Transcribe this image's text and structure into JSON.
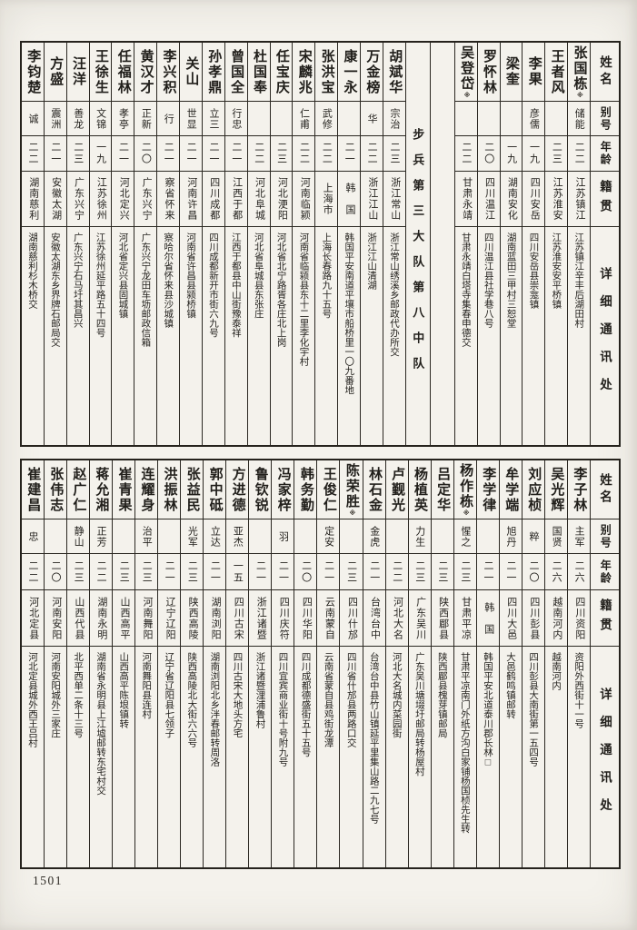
{
  "page_number": "1501",
  "unit_label": "步兵第三大队第八中队",
  "headers": {
    "name": "姓名",
    "alias": "别号",
    "age": "年龄",
    "origin": "籍贯",
    "address": "详细通讯处"
  },
  "top_people": [
    {
      "name": "张国栋",
      "note": "※",
      "alias": "储能",
      "age": "二二",
      "origin": "江苏镇江",
      "address": "江苏镇江辛丰后湖田村"
    },
    {
      "name": "王者风",
      "alias": "",
      "age": "二三",
      "origin": "江苏淮安",
      "address": "江苏淮安安平桥镇"
    },
    {
      "name": "李果",
      "alias": "彦儒",
      "age": "一九",
      "origin": "四川安岳",
      "address": "四川安岳县崇龛镇"
    },
    {
      "name": "梁奎",
      "alias": "",
      "age": "一九",
      "origin": "湖南安化",
      "address": "湖南蓝田三甲村三恕堂"
    },
    {
      "name": "罗怀林",
      "alias": "",
      "age": "二〇",
      "origin": "四川温江",
      "address": "四川温江县社学巷八号"
    },
    {
      "name": "吴登岱",
      "note": "※",
      "alias": "",
      "age": "二二",
      "origin": "甘肃永靖",
      "address": "甘肃永靖白塔寺集春申德交"
    },
    {
      "name": "胡斌华",
      "alias": "宗治",
      "age": "二三",
      "origin": "浙江常山",
      "address": "浙江常山绣溪乡邮政代办所交"
    },
    {
      "name": "万金榜",
      "alias": "华",
      "age": "二二",
      "origin": "浙江江山",
      "address": "浙江江山清湖"
    },
    {
      "name": "康一永",
      "alias": "",
      "age": "二一",
      "origin": "韩　国",
      "address": "韩国平安南道平壤市船桥里一〇九番地"
    },
    {
      "name": "张洪宝",
      "alias": "武修",
      "age": "二二",
      "origin": "上海市",
      "address": "上海长春路九十五号"
    },
    {
      "name": "宋麟兆",
      "alias": "仁甫",
      "age": "二二",
      "origin": "河南临颍",
      "address": "河南省临颍县东十二里李化宇村"
    },
    {
      "name": "任宝庆",
      "alias": "",
      "age": "二三",
      "origin": "河北浭阳",
      "address": "河北省北宁路胥各庄北上岗"
    },
    {
      "name": "杜国奉",
      "alias": "",
      "age": "二二",
      "origin": "河北阜城",
      "address": "河北省阜城县东张庄"
    },
    {
      "name": "曾国全",
      "alias": "行忠",
      "age": "二一",
      "origin": "江西于都",
      "address": "江西于都县中山街豫泰祥"
    },
    {
      "name": "孙孝鼎",
      "alias": "立三",
      "age": "二一",
      "origin": "四川成都",
      "address": "四川成都新开市街六九号"
    },
    {
      "name": "关山",
      "alias": "世显",
      "age": "二一",
      "origin": "河南许昌",
      "address": "河南省许昌县颍桥镇"
    },
    {
      "name": "李兴积",
      "alias": "行",
      "age": "二一",
      "origin": "察省怀来",
      "address": "察哈尔省怀来县沙城镇"
    },
    {
      "name": "黄汉才",
      "alias": "正新",
      "age": "二〇",
      "origin": "广东兴宁",
      "address": "广东兴宁龙田车坜邮政信箱"
    },
    {
      "name": "任福林",
      "alias": "孝亭",
      "age": "二一",
      "origin": "河北定兴",
      "address": "河北省定兴县固城镇"
    },
    {
      "name": "王徐生",
      "alias": "文锦",
      "age": "一九",
      "origin": "江苏徐州",
      "address": "江苏徐州延平路五十四号"
    },
    {
      "name": "汪洋",
      "alias": "善龙",
      "age": "二三",
      "origin": "广东兴宁",
      "address": "广东兴宁石马圩其昌兴"
    },
    {
      "name": "方盛",
      "alias": "震洲",
      "age": "二一",
      "origin": "安徽太湖",
      "address": "安徽太湖东乡界牌石邮局交"
    },
    {
      "name": "李钧楚",
      "alias": "诚",
      "age": "二二",
      "origin": "湖南慈利",
      "address": "湖南慈利杉木桥交"
    }
  ],
  "bottom_people": [
    {
      "name": "李子林",
      "alias": "主军",
      "age": "二六",
      "origin": "四川资阳",
      "address": "资阳外西街十一号"
    },
    {
      "name": "吴光辉",
      "alias": "国贤",
      "age": "二六",
      "origin": "越南河内",
      "address": "越南河内"
    },
    {
      "name": "刘应桢",
      "alias": "粹",
      "age": "二〇",
      "origin": "四川彭县",
      "address": "四川彭县大南街第一五四号"
    },
    {
      "name": "牟学端",
      "alias": "旭丹",
      "age": "二一",
      "origin": "四川大邑",
      "address": "大邑鹤鸣镇邮转"
    },
    {
      "name": "李学律",
      "alias": "",
      "age": "二一",
      "origin": "韩　国",
      "address": "韩国平安北道泰川郡长林□"
    },
    {
      "name": "杨作栋",
      "note": "※",
      "alias": "惺之",
      "age": "二三",
      "origin": "甘肃平凉",
      "address": "甘肃平凉南门外纸方沟白家铺杨国桢先生转"
    },
    {
      "name": "吕定华",
      "alias": "",
      "age": "二三",
      "origin": "陕西郿县",
      "address": "陕西郿县槐芽镇邮局"
    },
    {
      "name": "杨植英",
      "alias": "力生",
      "age": "二三",
      "origin": "广东吴川",
      "address": "广东吴川塘㙍圩邮局转杨屋村"
    },
    {
      "name": "卢觐光",
      "alias": "",
      "age": "二二",
      "origin": "河北大名",
      "address": "河北大名城内菜园街"
    },
    {
      "name": "林石金",
      "alias": "金虎",
      "age": "二一",
      "origin": "台湾台中",
      "address": "台湾台中县竹山镇延平里集山路二九七号"
    },
    {
      "name": "陈荣胜",
      "note": "※",
      "alias": "",
      "age": "二三",
      "origin": "四川什邡",
      "address": "四川省什邡县两路口交"
    },
    {
      "name": "王俊仁",
      "alias": "定安",
      "age": "二一",
      "origin": "云南蒙自",
      "address": "云南省蒙自县鸡街龙潭"
    },
    {
      "name": "韩务勤",
      "alias": "",
      "age": "二〇",
      "origin": "四川华阳",
      "address": "四川成都德盛街五十五号"
    },
    {
      "name": "冯家梓",
      "alias": "羽",
      "age": "二一",
      "origin": "四川庆符",
      "address": "四川宜宾商业街十号附九号"
    },
    {
      "name": "鲁钦锐",
      "alias": "",
      "age": "二一",
      "origin": "浙江诸暨",
      "address": "浙江诸暨浬浦鲁村"
    },
    {
      "name": "方进德",
      "alias": "亚杰",
      "age": "一五",
      "origin": "四川古宋",
      "address": "四川古宋大地头方宅"
    },
    {
      "name": "郭中砥",
      "alias": "立达",
      "age": "二一",
      "origin": "湖南浏阳",
      "address": "湖南浏阳北乡泮春邮转周洛"
    },
    {
      "name": "张益民",
      "alias": "光军",
      "age": "二三",
      "origin": "陕西高陵",
      "address": "陕西高陵北大街六六号"
    },
    {
      "name": "洪振林",
      "alias": "",
      "age": "二一",
      "origin": "辽宁辽阳",
      "address": "辽宁省辽阳县七领子"
    },
    {
      "name": "连耀身",
      "alias": "治平",
      "age": "二三",
      "origin": "河南舞阳",
      "address": "河南舞阳县连村"
    },
    {
      "name": "崔青果",
      "alias": "",
      "age": "二三",
      "origin": "山西高平",
      "address": "山西高平陈垠镇转"
    },
    {
      "name": "蒋允湘",
      "alias": "正芳",
      "age": "二二",
      "origin": "湖南永明",
      "address": "湖南省永明县上江墟邮转东宅村交"
    },
    {
      "name": "赵广仁",
      "alias": "静山",
      "age": "二三",
      "origin": "山西代县",
      "address": "北平西单二条十三号"
    },
    {
      "name": "张伟志",
      "alias": "",
      "age": "二〇",
      "origin": "河南安阳",
      "address": "河南安阳城外三家庄"
    },
    {
      "name": "崔建昌",
      "alias": "忠",
      "age": "二二",
      "origin": "河北定县",
      "address": "河北定县城外西王吕村"
    }
  ]
}
